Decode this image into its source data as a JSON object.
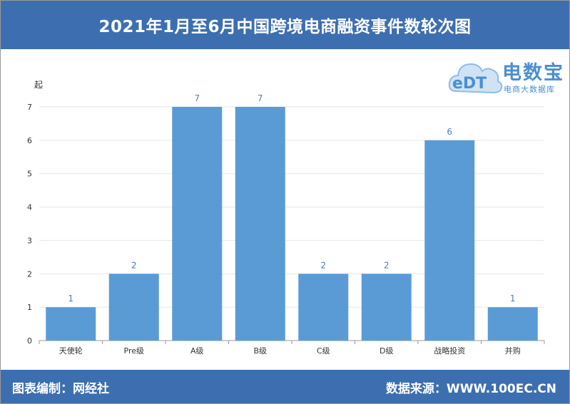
{
  "title": "2021年1月至6月中国跨境电商融资事件数轮次图",
  "footer": {
    "editor": "图表编制：网经社",
    "source": "数据来源：WWW.100EC.CN"
  },
  "logo": {
    "mark_text": "eDT",
    "brand": "电数宝",
    "brand_sub": "电商大数据库"
  },
  "colors": {
    "header_bg": "#3d6fb0",
    "bar": "#5b9bd5",
    "data_label": "#4a7fb8",
    "axis": "#999999",
    "grid": "#e6e6e6"
  },
  "chart_data": {
    "type": "bar",
    "title": "",
    "ylabel": "起",
    "xlabel": "",
    "categories": [
      "天使轮",
      "Pre级",
      "A级",
      "B级",
      "C级",
      "D级",
      "战略投资",
      "并购"
    ],
    "values": [
      1,
      2,
      7,
      7,
      2,
      2,
      6,
      1
    ],
    "ylim": [
      0,
      7
    ],
    "yticks": [
      0,
      1,
      2,
      3,
      4,
      5,
      6,
      7
    ],
    "grid": true,
    "data_labels": true
  }
}
